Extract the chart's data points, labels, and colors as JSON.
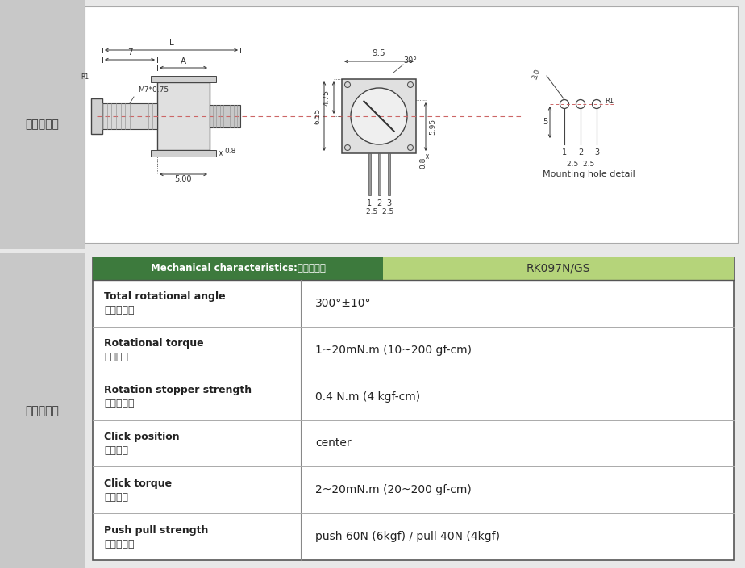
{
  "bg_color": "#e8e8e8",
  "top_section_bg": "#ffffff",
  "left_label_bg": "#c8c8c8",
  "header_green_dark": "#3d7a3d",
  "header_green_light": "#b5d47a",
  "left_label_top": "外形尺寸图",
  "left_label_bottom": "機械的性能",
  "header_left_text": "Mechanical characteristics:機械的性能",
  "header_right_text": "RK097N/GS",
  "rows": [
    {
      "label_en": "Total rotational angle",
      "label_zh": "全迤轉角度",
      "value": "300°±10°"
    },
    {
      "label_en": "Rotational torque",
      "label_zh": "迤轉扈力",
      "value": "1~20mN.m (10~200 gf-cm)"
    },
    {
      "label_en": "Rotation stopper strength",
      "label_zh": "止迤轉強度",
      "value": "0.4 N.m (4 kgf-cm)"
    },
    {
      "label_en": "Click position",
      "label_zh": "段數位置",
      "value": "center"
    },
    {
      "label_en": "Click torque",
      "label_zh": "段數扈力",
      "value": "2~20mN.m (20~200 gf-cm)"
    },
    {
      "label_en": "Push pull strength",
      "label_zh": "軸推拉強度",
      "value": "push 60N (6kgf) / pull 40N (4kgf)"
    }
  ]
}
